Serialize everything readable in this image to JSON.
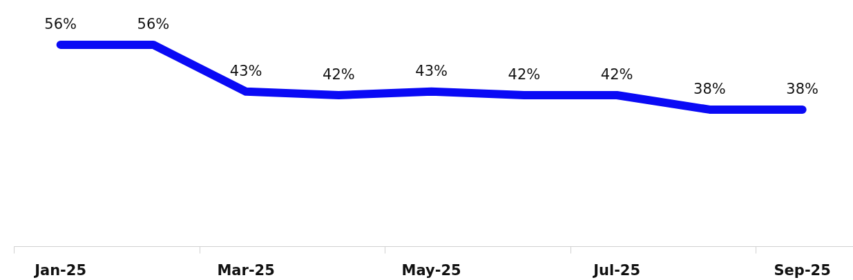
{
  "chart_data": {
    "type": "line",
    "categories": [
      "Jan-25",
      null,
      "Mar-25",
      null,
      "May-25",
      null,
      "Jul-25",
      null,
      "Sep-25"
    ],
    "series": [
      {
        "color": "#0a0af5",
        "values": [
          56,
          56,
          43,
          42,
          43,
          42,
          42,
          38,
          38
        ],
        "value_labels": [
          "56%",
          "56%",
          "43%",
          "42%",
          "43%",
          "42%",
          "42%",
          "38%",
          "38%"
        ]
      }
    ],
    "tick_labels": "x",
    "marker": "none",
    "line_style": "solid"
  }
}
